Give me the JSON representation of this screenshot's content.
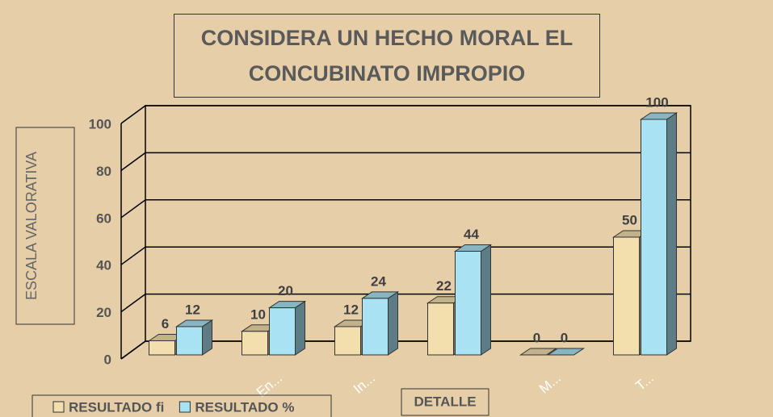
{
  "chart_data": {
    "type": "bar3d",
    "title": "CONSIDERA UN HECHO MORAL EL CONCUBINATO IMPROPIO",
    "y_label": "ESCALA VALORATIVA",
    "x_label": "DETALLE",
    "categories": [
      null,
      "En...",
      "In...",
      null,
      "M...",
      "T..."
    ],
    "series": [
      {
        "name": "RESULTADO fi",
        "color": "#f3dfae",
        "values": [
          6,
          10,
          12,
          22,
          0,
          50
        ]
      },
      {
        "name": "RESULTADO %",
        "color": "#a9e2f2",
        "values": [
          12,
          20,
          24,
          44,
          0,
          100
        ]
      }
    ],
    "ylim": [
      0,
      100
    ],
    "yticks": [
      0,
      20,
      40,
      60,
      80,
      100
    ],
    "grid": true
  }
}
